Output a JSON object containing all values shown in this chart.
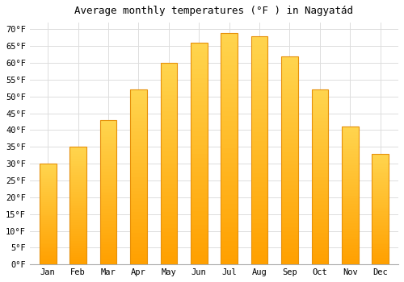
{
  "title": "Average monthly temperatures (°F ) in Nagyatád",
  "months": [
    "Jan",
    "Feb",
    "Mar",
    "Apr",
    "May",
    "Jun",
    "Jul",
    "Aug",
    "Sep",
    "Oct",
    "Nov",
    "Dec"
  ],
  "values": [
    30,
    35,
    43,
    52,
    60,
    66,
    69,
    68,
    62,
    52,
    41,
    33
  ],
  "bar_color_center": "#FFD54F",
  "bar_color_edge": "#FFA000",
  "bar_edge_color": "#E6900A",
  "background_color": "#FFFFFF",
  "grid_color": "#DDDDDD",
  "ylim": [
    0,
    72
  ],
  "yticks": [
    0,
    5,
    10,
    15,
    20,
    25,
    30,
    35,
    40,
    45,
    50,
    55,
    60,
    65,
    70
  ],
  "title_fontsize": 9,
  "tick_fontsize": 7.5,
  "font_family": "monospace",
  "bar_width": 0.55
}
